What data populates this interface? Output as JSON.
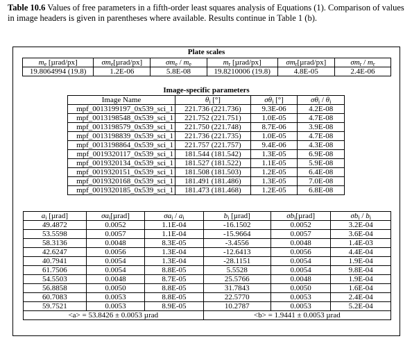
{
  "caption": {
    "label": "Table 10.6",
    "text": " Values of free parameters in a fifth-order least squares analysis of Equations (1). Comparison of values in image headers is given in parentheses where available. Results continue in Table 1 (b)."
  },
  "plate": {
    "title": "Plate scales",
    "headers": [
      "m_e [µrad/px]",
      "σm_e[µrad/px]",
      "σm_e / m_e",
      "m_r [µrad/px]",
      "σm_r[µrad/px]",
      "σm_r / m_r"
    ],
    "values": [
      "19.8064994 (19.8)",
      "1.2E-06",
      "5.8E-08",
      "19.8210006 (19.8)",
      "4.8E-05",
      "2.4E-06"
    ]
  },
  "image": {
    "title": "Image-specific parameters",
    "headers": [
      "Image Name",
      "θ_i [°]",
      "σθ_i [°]",
      "σθ_i / θ_i"
    ],
    "rows": [
      [
        "mpf_0013199197_0x539_sci_1",
        "221.736 (221.736)",
        "9.3E-06",
        "4.2E-08"
      ],
      [
        "mpf_0013198548_0x539_sci_1",
        "221.752 (221.751)",
        "1.0E-05",
        "4.7E-08"
      ],
      [
        "mpf_0013198579_0x539_sci_1",
        "221.750 (221.748)",
        "8.7E-06",
        "3.9E-08"
      ],
      [
        "mpf_0013198839_0x539_sci_1",
        "221.736 (221.735)",
        "1.0E-05",
        "4.7E-08"
      ],
      [
        "mpf_0013198864_0x539_sci_1",
        "221.757 (221.757)",
        "9.4E-06",
        "4.3E-08"
      ],
      [
        "mpf_0019320117_0x539_sci_1",
        "181.544 (181.542)",
        "1.3E-05",
        "6.9E-08"
      ],
      [
        "mpf_0019320134_0x539_sci_1",
        "181.527 (181.522)",
        "1.1E-05",
        "5.9E-08"
      ],
      [
        "mpf_0019320151_0x539_sci_1",
        "181.508 (181.503)",
        "1.2E-05",
        "6.4E-08"
      ],
      [
        "mpf_0019320168_0x539_sci_1",
        "181.491 (181.486)",
        "1.3E-05",
        "7.0E-08"
      ],
      [
        "mpf_0019320185_0x539_sci_1",
        "181.473 (181.468)",
        "1.2E-05",
        "6.8E-08"
      ]
    ]
  },
  "ab": {
    "headers": [
      "a_i [µrad]",
      "σa_i[µrad]",
      "σa_i / a_i",
      "b_i [µrad]",
      "σb_i[µrad]",
      "σb_i / b_i"
    ],
    "rows": [
      [
        "49.4872",
        "0.0052",
        "1.1E-04",
        "-16.1502",
        "0.0052",
        "3.2E-04"
      ],
      [
        "53.5598",
        "0.0057",
        "1.1E-04",
        "-15.9664",
        "0.0057",
        "3.6E-04"
      ],
      [
        "58.3136",
        "0.0048",
        "8.3E-05",
        "-3.4556",
        "0.0048",
        "1.4E-03"
      ],
      [
        "42.6247",
        "0.0056",
        "1.3E-04",
        "-12.6413",
        "0.0056",
        "4.4E-04"
      ],
      [
        "40.7941",
        "0.0054",
        "1.3E-04",
        "-28.1151",
        "0.0054",
        "1.9E-04"
      ],
      [
        "61.7506",
        "0.0054",
        "8.8E-05",
        "5.5528",
        "0.0054",
        "9.8E-04"
      ],
      [
        "54.5503",
        "0.0048",
        "8.7E-05",
        "25.5766",
        "0.0048",
        "1.9E-04"
      ],
      [
        "56.8858",
        "0.0050",
        "8.8E-05",
        "31.7843",
        "0.0050",
        "1.6E-04"
      ],
      [
        "60.7083",
        "0.0053",
        "8.8E-05",
        "22.5770",
        "0.0053",
        "2.4E-04"
      ],
      [
        "59.7521",
        "0.0053",
        "8.9E-05",
        "10.2787",
        "0.0053",
        "5.2E-04"
      ]
    ],
    "mean_a": "<a> = 53.8426 ± 0.0053 µrad",
    "mean_b": "<b> = 1.9441 ± 0.0053 µrad"
  }
}
